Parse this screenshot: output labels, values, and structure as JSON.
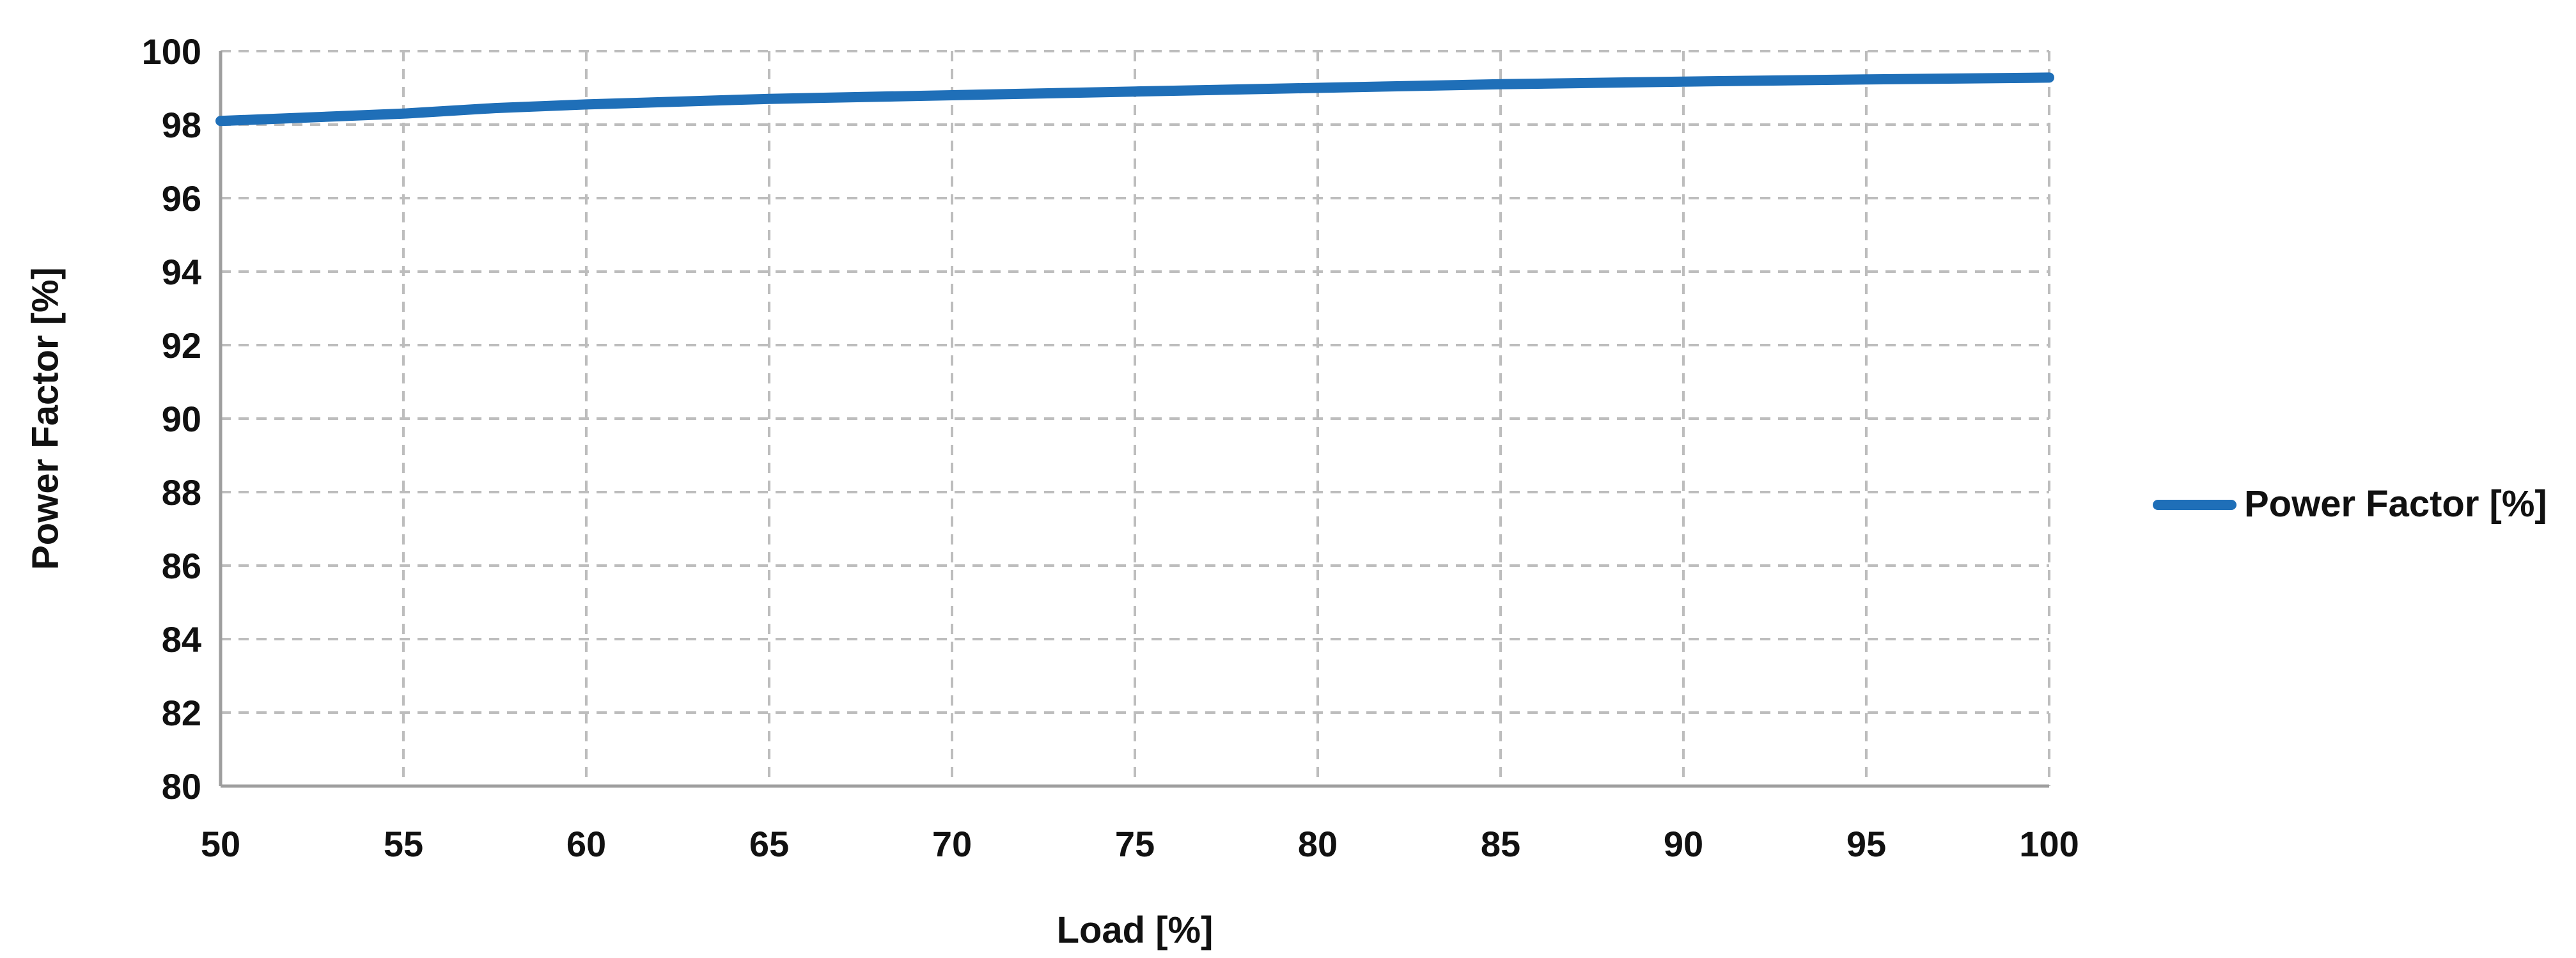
{
  "chart_data": {
    "type": "line",
    "xlabel": "Load [%]",
    "ylabel": "Power Factor [%]",
    "xlim": [
      50,
      100
    ],
    "ylim": [
      80,
      100
    ],
    "x_ticks": [
      50,
      55,
      60,
      65,
      70,
      75,
      80,
      85,
      90,
      95,
      100
    ],
    "y_ticks": [
      80,
      82,
      84,
      86,
      88,
      90,
      92,
      94,
      96,
      98,
      100
    ],
    "grid": true,
    "legend_position": "right",
    "x": [
      50,
      55,
      57.5,
      60,
      65,
      70,
      75,
      80,
      85,
      90,
      95,
      100
    ],
    "series": [
      {
        "name": "Power Factor [%]",
        "color": "#1f6fb8",
        "values": [
          98.1,
          98.3,
          98.45,
          98.55,
          98.7,
          98.8,
          98.9,
          99.0,
          99.1,
          99.17,
          99.23,
          99.28
        ]
      }
    ]
  }
}
